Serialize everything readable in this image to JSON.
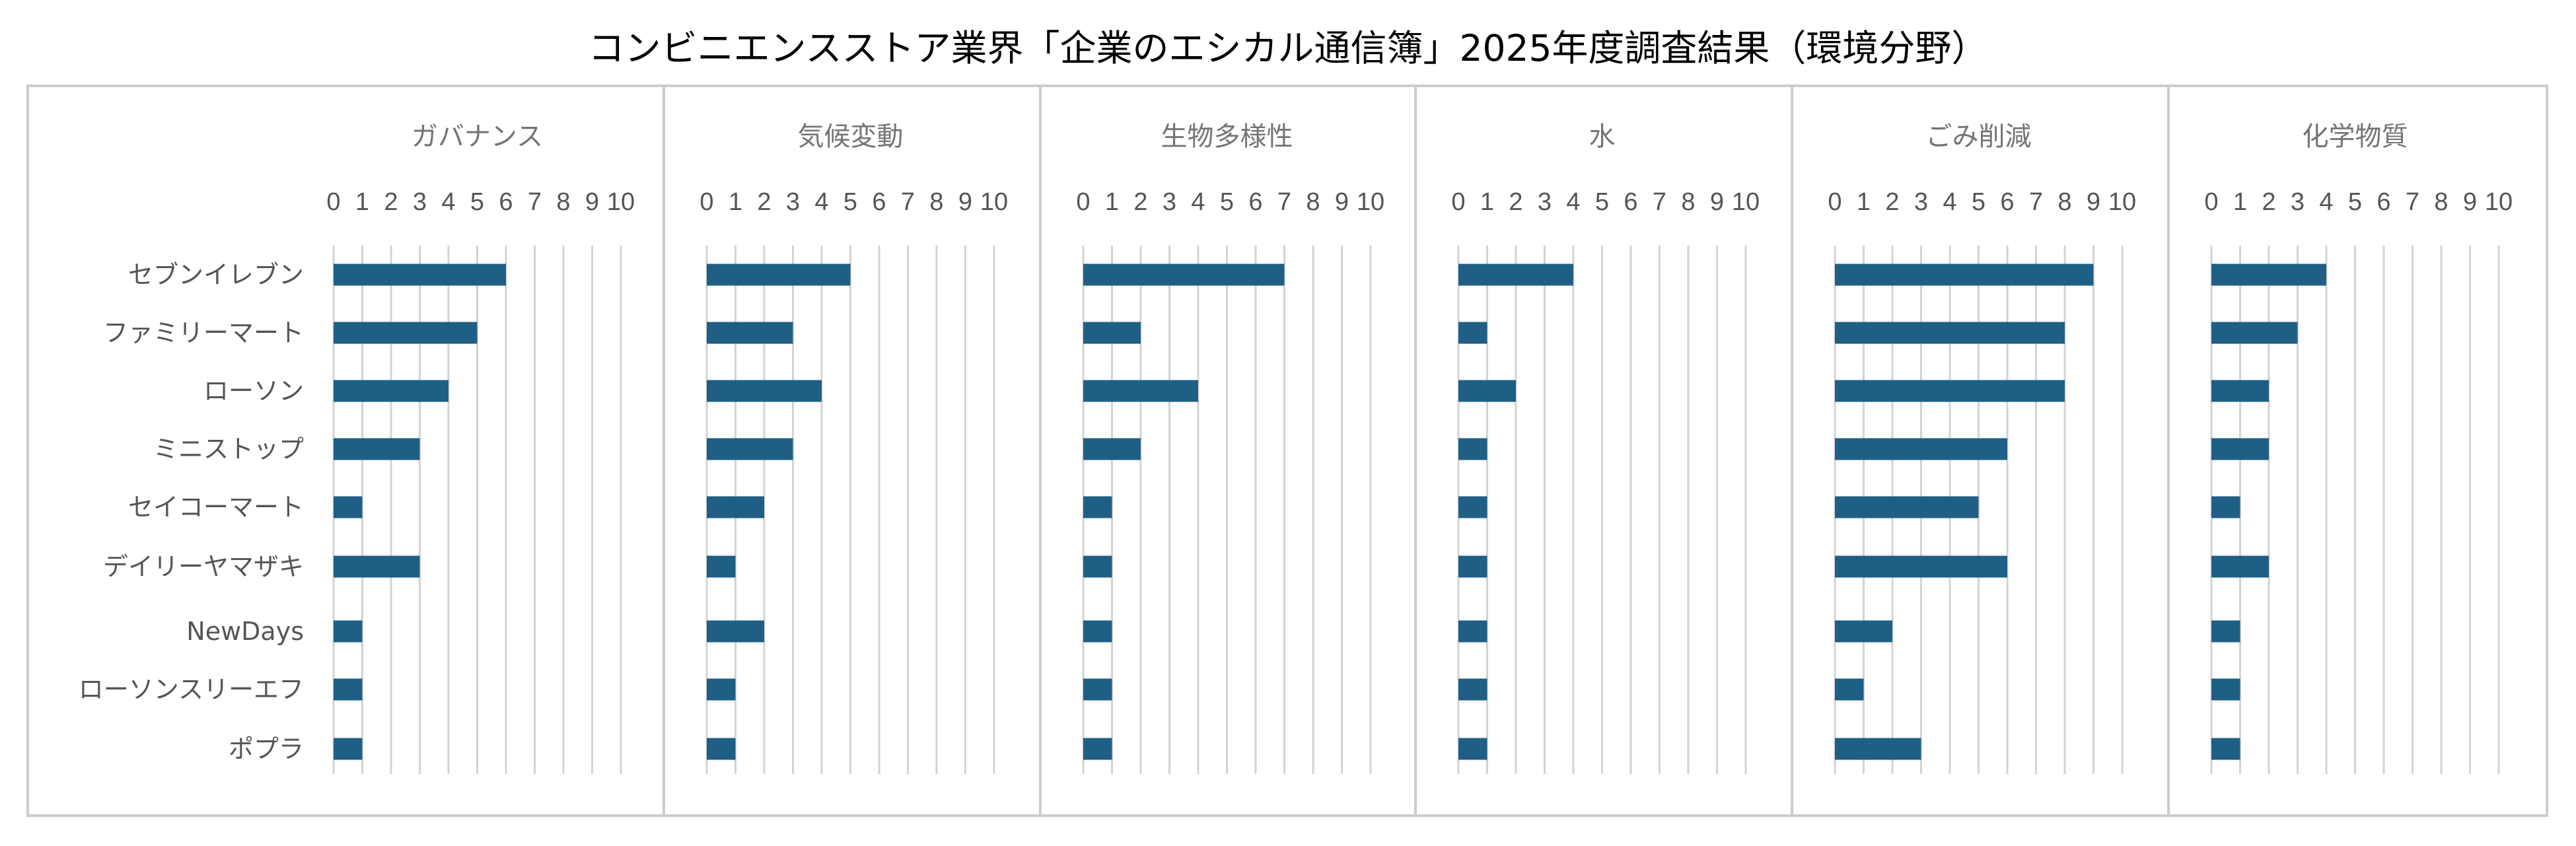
{
  "chart_data": {
    "type": "bar",
    "orientation": "horizontal",
    "title": "コンビニエンスストア業界「企業のエシカル通信簿」2025年度調査結果（環境分野）",
    "categories": [
      "セブンイレブン",
      "ファミリーマート",
      "ローソン",
      "ミニストップ",
      "セイコーマート",
      "デイリーヤマザキ",
      "NewDays",
      "ローソンスリーエフ",
      "ポプラ"
    ],
    "xlim": [
      0,
      10
    ],
    "xticks": [
      0,
      1,
      2,
      3,
      4,
      5,
      6,
      7,
      8,
      9,
      10
    ],
    "grid": true,
    "bar_color": "#1f5f85",
    "panels": [
      {
        "title": "ガバナンス",
        "values": [
          6,
          5,
          4,
          3,
          1,
          3,
          1,
          1,
          1
        ]
      },
      {
        "title": "気候変動",
        "values": [
          5,
          3,
          4,
          3,
          2,
          1,
          2,
          1,
          1
        ]
      },
      {
        "title": "生物多様性",
        "values": [
          7,
          2,
          4,
          2,
          1,
          1,
          1,
          1,
          1
        ]
      },
      {
        "title": "水",
        "values": [
          4,
          1,
          2,
          1,
          1,
          1,
          1,
          1,
          1
        ]
      },
      {
        "title": "ごみ削減",
        "values": [
          9,
          8,
          8,
          6,
          5,
          6,
          2,
          1,
          3
        ]
      },
      {
        "title": "化学物質",
        "values": [
          4,
          3,
          2,
          2,
          1,
          2,
          1,
          1,
          1
        ]
      }
    ]
  }
}
